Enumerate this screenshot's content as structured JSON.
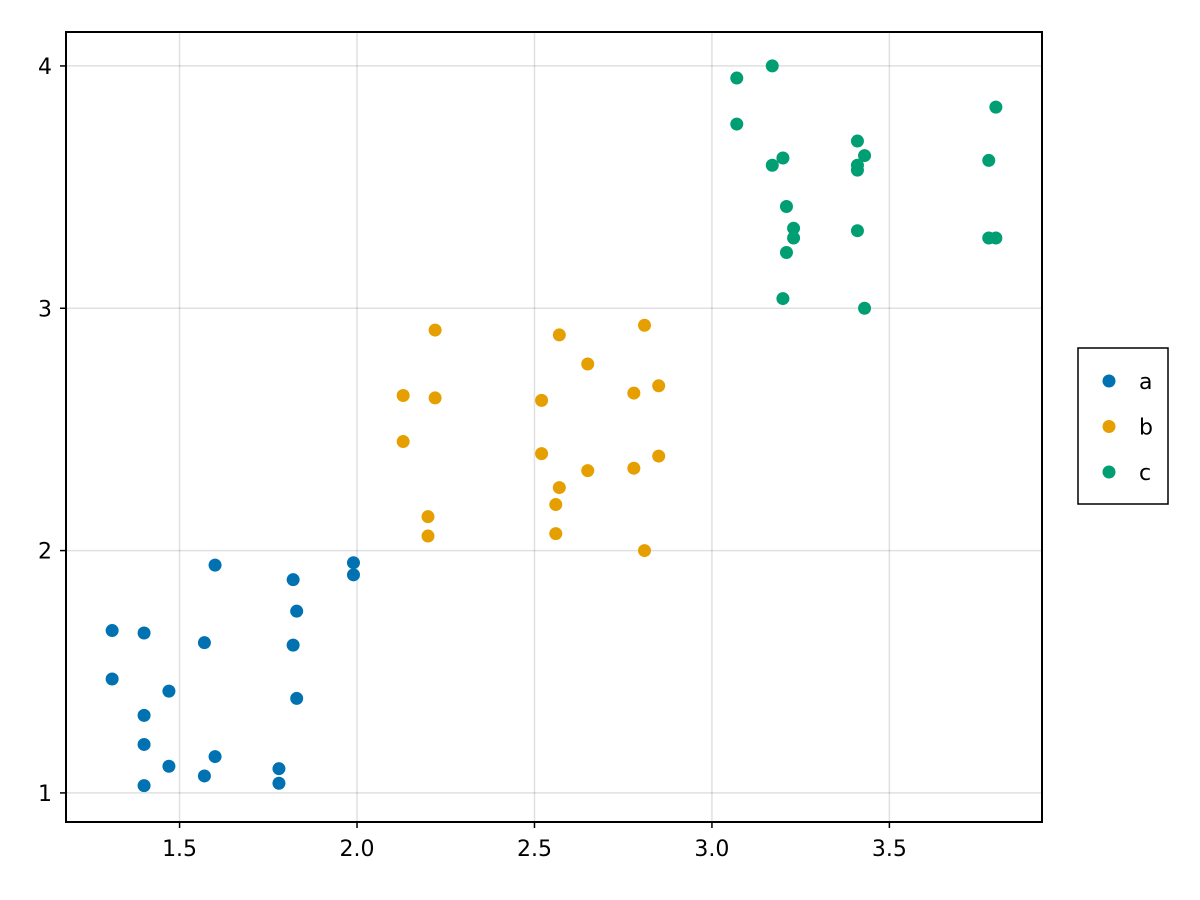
{
  "chart_data": {
    "type": "scatter",
    "title": "",
    "xlabel": "",
    "ylabel": "",
    "xlim": [
      1.18,
      3.93
    ],
    "ylim": [
      0.88,
      4.14
    ],
    "x_ticks": [
      1.5,
      2.0,
      2.5,
      3.0,
      3.5
    ],
    "x_tick_labels": [
      "1.5",
      "2.0",
      "2.5",
      "3.0",
      "3.5"
    ],
    "y_ticks": [
      1,
      2,
      3,
      4
    ],
    "y_tick_labels": [
      "1",
      "2",
      "3",
      "4"
    ],
    "grid": true,
    "legend_position": "right",
    "series": [
      {
        "name": "a",
        "color": "#0072b2",
        "points": [
          [
            1.31,
            1.67
          ],
          [
            1.31,
            1.47
          ],
          [
            1.4,
            1.66
          ],
          [
            1.4,
            1.32
          ],
          [
            1.4,
            1.2
          ],
          [
            1.4,
            1.03
          ],
          [
            1.47,
            1.42
          ],
          [
            1.47,
            1.11
          ],
          [
            1.57,
            1.62
          ],
          [
            1.57,
            1.07
          ],
          [
            1.6,
            1.94
          ],
          [
            1.6,
            1.15
          ],
          [
            1.78,
            1.1
          ],
          [
            1.78,
            1.04
          ],
          [
            1.82,
            1.88
          ],
          [
            1.82,
            1.61
          ],
          [
            1.83,
            1.75
          ],
          [
            1.83,
            1.39
          ],
          [
            1.99,
            1.95
          ],
          [
            1.99,
            1.9
          ]
        ]
      },
      {
        "name": "b",
        "color": "#e69f00",
        "points": [
          [
            2.13,
            2.64
          ],
          [
            2.13,
            2.45
          ],
          [
            2.2,
            2.14
          ],
          [
            2.2,
            2.06
          ],
          [
            2.22,
            2.91
          ],
          [
            2.22,
            2.63
          ],
          [
            2.52,
            2.62
          ],
          [
            2.52,
            2.4
          ],
          [
            2.56,
            2.19
          ],
          [
            2.56,
            2.07
          ],
          [
            2.57,
            2.89
          ],
          [
            2.57,
            2.26
          ],
          [
            2.65,
            2.77
          ],
          [
            2.65,
            2.33
          ],
          [
            2.78,
            2.65
          ],
          [
            2.78,
            2.34
          ],
          [
            2.81,
            2.93
          ],
          [
            2.81,
            2.0
          ],
          [
            2.85,
            2.68
          ],
          [
            2.85,
            2.39
          ]
        ]
      },
      {
        "name": "c",
        "color": "#009e73",
        "points": [
          [
            3.07,
            3.95
          ],
          [
            3.07,
            3.76
          ],
          [
            3.17,
            4.0
          ],
          [
            3.17,
            3.59
          ],
          [
            3.2,
            3.62
          ],
          [
            3.2,
            3.04
          ],
          [
            3.21,
            3.42
          ],
          [
            3.21,
            3.23
          ],
          [
            3.23,
            3.33
          ],
          [
            3.23,
            3.29
          ],
          [
            3.41,
            3.69
          ],
          [
            3.41,
            3.59
          ],
          [
            3.41,
            3.57
          ],
          [
            3.41,
            3.32
          ],
          [
            3.43,
            3.63
          ],
          [
            3.43,
            3.0
          ],
          [
            3.78,
            3.61
          ],
          [
            3.78,
            3.29
          ],
          [
            3.8,
            3.83
          ],
          [
            3.8,
            3.29
          ]
        ]
      }
    ]
  }
}
